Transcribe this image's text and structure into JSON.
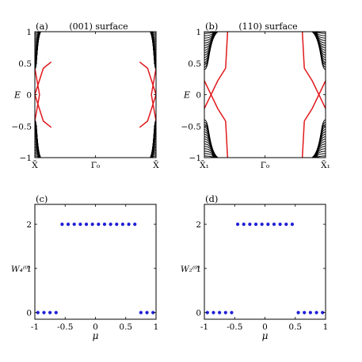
{
  "figure": {
    "colors": {
      "bulk": "#000000",
      "surface": "#e0191c",
      "points": "#1f1fd6",
      "axis": "#000000"
    }
  },
  "chart_data": [
    {
      "type": "line",
      "panel_label": "(a)",
      "title": "(001) surface",
      "ylabel": "E",
      "xlim": [
        0,
        2
      ],
      "ylim": [
        -1,
        1
      ],
      "xticks": [
        {
          "value": 0,
          "label": "X̄"
        },
        {
          "value": 1,
          "label": "Γ̄₀"
        },
        {
          "value": 2,
          "label": "X̄"
        }
      ],
      "yticks": [
        {
          "value": -1,
          "label": "−1"
        },
        {
          "value": -0.5,
          "label": "−0.5"
        },
        {
          "value": 0,
          "label": "0"
        },
        {
          "value": 0.5,
          "label": "0.5"
        },
        {
          "value": 1,
          "label": "1"
        }
      ],
      "series": [
        {
          "role": "bulk",
          "x_edges": [
            0.0,
            0.12
          ],
          "band_gap_top": 0.4,
          "band_gap_bottom": -0.4
        },
        {
          "role": "surface",
          "x_start": 0.0,
          "x_end": 0.14,
          "values_at_edge": [
            0.42,
            -0.42,
            0.0
          ]
        }
      ]
    },
    {
      "type": "line",
      "panel_label": "(b)",
      "title": "(110) surface",
      "ylabel": "E",
      "xlim": [
        0,
        2
      ],
      "ylim": [
        -1,
        1
      ],
      "xticks": [
        {
          "value": 0,
          "label": "X̄₁"
        },
        {
          "value": 1,
          "label": "Γ̄₀"
        },
        {
          "value": 2,
          "label": "X̄₁"
        }
      ],
      "yticks": [
        {
          "value": -1,
          "label": "−1"
        },
        {
          "value": -0.5,
          "label": "−0.5"
        },
        {
          "value": 0,
          "label": "0"
        },
        {
          "value": 0.5,
          "label": "0.5"
        },
        {
          "value": 1,
          "label": "1"
        }
      ],
      "series": [
        {
          "role": "bulk",
          "x_edges": [
            0.0,
            0.28
          ],
          "band_gap_top": 0.4,
          "band_gap_bottom": -0.4
        },
        {
          "role": "surface",
          "x_start": 0.0,
          "x_end": 0.22,
          "values_at_edge": [
            0.22,
            -0.22
          ]
        }
      ]
    },
    {
      "type": "scatter",
      "panel_label": "(c)",
      "xlabel": "μ",
      "ylabel": "W₄⁽⁰⁾",
      "xlim": [
        -1,
        1
      ],
      "ylim": [
        -0.15,
        2.45
      ],
      "xticks": [
        {
          "value": -1,
          "label": "-1"
        },
        {
          "value": -0.5,
          "label": "-0.5"
        },
        {
          "value": 0,
          "label": "0"
        },
        {
          "value": 0.5,
          "label": "0.5"
        },
        {
          "value": 1,
          "label": "1"
        }
      ],
      "yticks": [
        {
          "value": 0,
          "label": "0"
        },
        {
          "value": 1,
          "label": "1"
        },
        {
          "value": 2,
          "label": "2"
        }
      ],
      "x": [
        -0.95,
        -0.85,
        -0.75,
        -0.65,
        -0.55,
        -0.45,
        -0.35,
        -0.25,
        -0.15,
        -0.05,
        0.05,
        0.15,
        0.25,
        0.35,
        0.45,
        0.55,
        0.65,
        0.75,
        0.85,
        0.95
      ],
      "y": [
        0,
        0,
        0,
        0,
        2,
        2,
        2,
        2,
        2,
        2,
        2,
        2,
        2,
        2,
        2,
        2,
        2,
        0,
        0,
        0
      ]
    },
    {
      "type": "scatter",
      "panel_label": "(d)",
      "xlabel": "μ",
      "ylabel": "W₂⁽⁰⁾",
      "xlim": [
        -1,
        1
      ],
      "ylim": [
        -0.15,
        2.45
      ],
      "xticks": [
        {
          "value": -1,
          "label": "-1"
        },
        {
          "value": -0.5,
          "label": "-0.5"
        },
        {
          "value": 0,
          "label": "0"
        },
        {
          "value": 0.5,
          "label": "0.5"
        },
        {
          "value": 1,
          "label": "1"
        }
      ],
      "yticks": [
        {
          "value": 0,
          "label": "0"
        },
        {
          "value": 1,
          "label": "1"
        },
        {
          "value": 2,
          "label": "2"
        }
      ],
      "x": [
        -0.95,
        -0.85,
        -0.75,
        -0.65,
        -0.55,
        -0.45,
        -0.35,
        -0.25,
        -0.15,
        -0.05,
        0.05,
        0.15,
        0.25,
        0.35,
        0.45,
        0.55,
        0.65,
        0.75,
        0.85,
        0.95
      ],
      "y": [
        0,
        0,
        0,
        0,
        0,
        2,
        2,
        2,
        2,
        2,
        2,
        2,
        2,
        2,
        2,
        0,
        0,
        0,
        0,
        0
      ]
    }
  ]
}
